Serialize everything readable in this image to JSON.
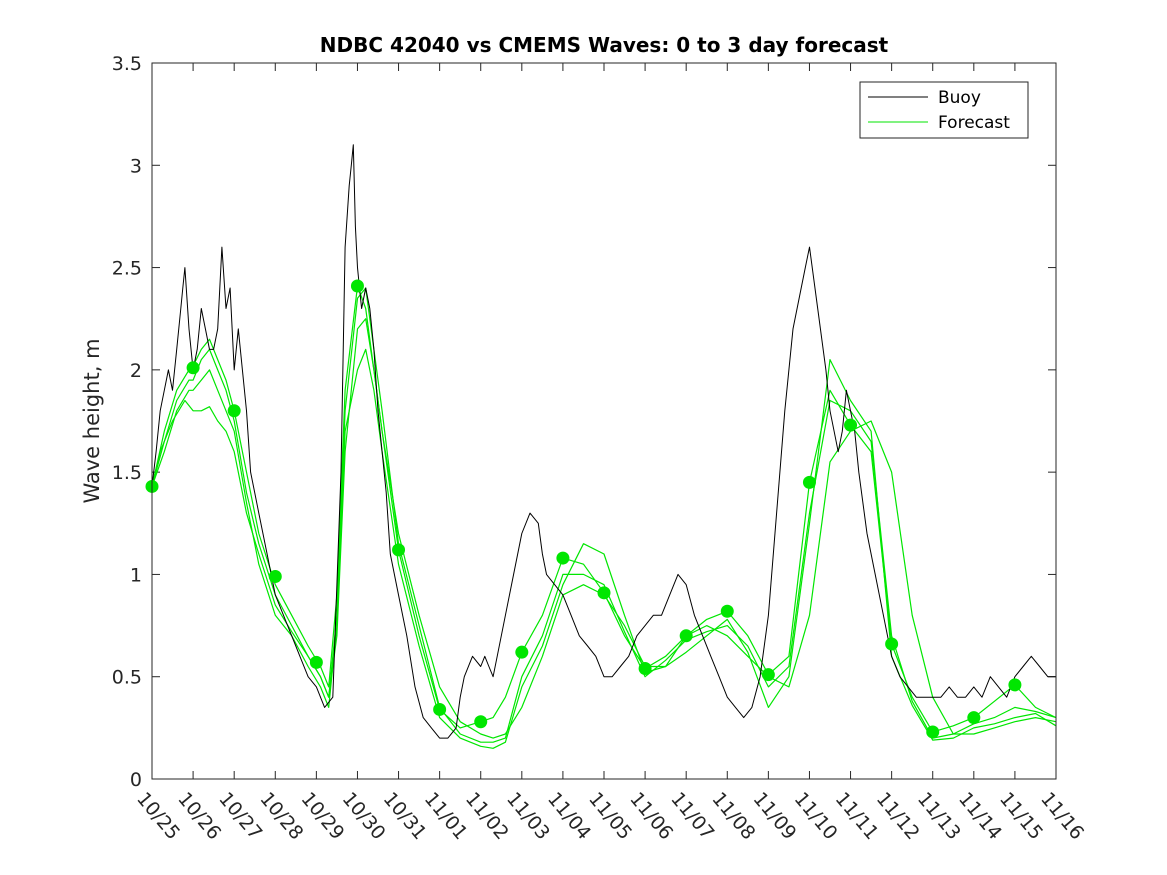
{
  "chart_data": {
    "type": "line",
    "title": "NDBC 42040 vs CMEMS Waves: 0 to 3 day forecast",
    "xlabel": "",
    "ylabel": "Wave height, m",
    "xlim": [
      0,
      22
    ],
    "ylim": [
      0,
      3.5
    ],
    "x_tick_labels": [
      "10/25",
      "10/26",
      "10/27",
      "10/28",
      "10/29",
      "10/30",
      "10/31",
      "11/01",
      "11/02",
      "11/03",
      "11/04",
      "11/05",
      "11/06",
      "11/07",
      "11/08",
      "11/09",
      "11/10",
      "11/11",
      "11/12",
      "11/13",
      "11/14",
      "11/15",
      "11/16"
    ],
    "y_ticks": [
      "0",
      "0.5",
      "1",
      "1.5",
      "2",
      "2.5",
      "3",
      "3.5"
    ],
    "legend": {
      "placement": "top-right",
      "entries": [
        "Buoy",
        "Forecast"
      ]
    },
    "colors": {
      "buoy": "#000000",
      "forecast": "#00e600"
    },
    "series": [
      {
        "name": "Buoy",
        "x": [
          0,
          0.1,
          0.2,
          0.3,
          0.4,
          0.5,
          0.6,
          0.7,
          0.75,
          0.8,
          0.9,
          1.0,
          1.1,
          1.2,
          1.3,
          1.4,
          1.5,
          1.6,
          1.7,
          1.8,
          1.9,
          2.0,
          2.1,
          2.2,
          2.3,
          2.4,
          2.6,
          2.8,
          3.0,
          3.2,
          3.4,
          3.6,
          3.8,
          4.0,
          4.2,
          4.4,
          4.6,
          4.7,
          4.8,
          4.85,
          4.9,
          4.95,
          5.0,
          5.05,
          5.1,
          5.2,
          5.3,
          5.4,
          5.5,
          5.6,
          5.7,
          5.8,
          6.0,
          6.2,
          6.4,
          6.6,
          6.8,
          7.0,
          7.2,
          7.4,
          7.5,
          7.6,
          7.8,
          8.0,
          8.1,
          8.2,
          8.3,
          8.4,
          8.5,
          8.6,
          8.8,
          9.0,
          9.2,
          9.4,
          9.5,
          9.6,
          9.8,
          10.0,
          10.2,
          10.4,
          10.6,
          10.8,
          11.0,
          11.2,
          11.4,
          11.6,
          11.8,
          12.0,
          12.2,
          12.4,
          12.6,
          12.8,
          13.0,
          13.2,
          13.4,
          13.6,
          13.8,
          14.0,
          14.2,
          14.4,
          14.6,
          14.8,
          15.0,
          15.2,
          15.4,
          15.6,
          15.8,
          15.9,
          16.0,
          16.2,
          16.4,
          16.5,
          16.6,
          16.7,
          16.8,
          16.9,
          17.0,
          17.1,
          17.2,
          17.4,
          17.6,
          17.8,
          18.0,
          18.2,
          18.4,
          18.6,
          18.8,
          19.0,
          19.2,
          19.4,
          19.6,
          19.8,
          20.0,
          20.2,
          20.4,
          20.6,
          20.8,
          21.0,
          21.2,
          21.4,
          21.6,
          21.8,
          22.0
        ],
        "y": [
          1.43,
          1.6,
          1.8,
          1.9,
          2.0,
          1.9,
          2.1,
          2.3,
          2.4,
          2.5,
          2.2,
          2.0,
          2.1,
          2.3,
          2.2,
          2.1,
          2.1,
          2.2,
          2.6,
          2.3,
          2.4,
          2.0,
          2.2,
          2.0,
          1.8,
          1.5,
          1.3,
          1.1,
          0.9,
          0.8,
          0.7,
          0.6,
          0.5,
          0.45,
          0.35,
          0.4,
          1.5,
          2.6,
          2.9,
          3.0,
          3.1,
          2.7,
          2.5,
          2.4,
          2.3,
          2.4,
          2.3,
          2.1,
          1.8,
          1.6,
          1.4,
          1.1,
          0.9,
          0.7,
          0.45,
          0.3,
          0.25,
          0.2,
          0.2,
          0.25,
          0.4,
          0.5,
          0.6,
          0.55,
          0.6,
          0.55,
          0.5,
          0.6,
          0.7,
          0.8,
          1.0,
          1.2,
          1.3,
          1.25,
          1.1,
          1.0,
          0.95,
          0.9,
          0.8,
          0.7,
          0.65,
          0.6,
          0.5,
          0.5,
          0.55,
          0.6,
          0.7,
          0.75,
          0.8,
          0.8,
          0.9,
          1.0,
          0.95,
          0.8,
          0.7,
          0.6,
          0.5,
          0.4,
          0.35,
          0.3,
          0.35,
          0.5,
          0.8,
          1.3,
          1.8,
          2.2,
          2.4,
          2.5,
          2.6,
          2.3,
          2.0,
          1.8,
          1.7,
          1.6,
          1.7,
          1.9,
          1.8,
          1.7,
          1.5,
          1.2,
          1.0,
          0.8,
          0.6,
          0.5,
          0.45,
          0.4,
          0.4,
          0.4,
          0.4,
          0.45,
          0.4,
          0.4,
          0.45,
          0.4,
          0.5,
          0.45,
          0.4,
          0.5,
          0.55,
          0.6,
          0.55,
          0.5,
          0.5
        ]
      },
      {
        "name": "Forecast",
        "x": [
          0,
          0.2,
          0.5,
          0.8,
          1.0,
          1.2,
          1.4,
          1.6,
          1.8,
          2.0,
          2.3,
          2.6,
          3.0,
          3.4,
          3.8,
          4.1,
          4.3,
          4.5,
          4.7,
          5.0,
          5.2,
          5.4,
          5.6,
          6.0,
          6.5,
          7.0,
          7.5,
          8.0,
          8.3,
          8.6,
          9.0,
          9.5,
          10.0,
          10.5,
          11.0,
          11.5,
          12.0,
          12.5,
          13.0,
          13.5,
          14.0,
          14.5,
          15.0,
          15.5,
          16.0,
          16.5,
          17.0,
          17.5,
          18.0,
          18.5,
          19.0,
          19.5,
          20.0,
          20.5,
          21.0,
          21.5,
          22.0
        ],
        "y": [
          1.43,
          1.6,
          1.75,
          1.85,
          1.8,
          1.8,
          1.82,
          1.75,
          1.7,
          1.6,
          1.3,
          1.1,
          0.85,
          0.72,
          0.6,
          0.5,
          0.4,
          0.7,
          1.6,
          2.2,
          2.25,
          2.0,
          1.7,
          1.2,
          0.8,
          0.45,
          0.28,
          0.22,
          0.2,
          0.22,
          0.35,
          0.6,
          0.9,
          0.95,
          0.9,
          0.75,
          0.55,
          0.55,
          0.7,
          0.75,
          0.7,
          0.6,
          0.5,
          0.45,
          0.8,
          1.55,
          1.7,
          1.75,
          1.5,
          0.8,
          0.4,
          0.22,
          0.22,
          0.25,
          0.28,
          0.3,
          0.28
        ]
      },
      {
        "name": "",
        "x": [
          0,
          0.3,
          0.6,
          0.9,
          1.0,
          1.2,
          1.4,
          1.6,
          1.8,
          2.0,
          2.3,
          2.6,
          3.0,
          3.4,
          3.8,
          4.1,
          4.3,
          4.5,
          4.7,
          5.0,
          5.2,
          5.4,
          5.6,
          6.0,
          6.5,
          7.0,
          7.5,
          8.0,
          8.3,
          8.6,
          9.0,
          9.5,
          10.0,
          10.5,
          11.0,
          11.5,
          12.0,
          12.5,
          13.0,
          13.5,
          14.0,
          14.5,
          15.0,
          15.5,
          16.0,
          16.5,
          17.0,
          17.5,
          18.0,
          18.5,
          19.0,
          19.5,
          20.0,
          20.5,
          21.0,
          21.5,
          22.0
        ],
        "y": [
          1.43,
          1.7,
          1.9,
          2.0,
          2.02,
          2.1,
          2.15,
          2.05,
          1.95,
          1.8,
          1.5,
          1.2,
          0.95,
          0.8,
          0.65,
          0.55,
          0.45,
          0.9,
          1.9,
          2.41,
          2.3,
          2.0,
          1.7,
          1.12,
          0.7,
          0.34,
          0.25,
          0.28,
          0.3,
          0.4,
          0.62,
          0.8,
          1.08,
          1.05,
          0.91,
          0.7,
          0.54,
          0.6,
          0.7,
          0.78,
          0.82,
          0.7,
          0.51,
          0.6,
          1.45,
          1.9,
          1.73,
          1.6,
          0.66,
          0.4,
          0.23,
          0.26,
          0.3,
          0.38,
          0.46,
          0.35,
          0.3
        ]
      },
      {
        "name": "",
        "x": [
          0,
          0.3,
          0.6,
          0.9,
          1.0,
          1.2,
          1.4,
          1.6,
          1.8,
          2.0,
          2.3,
          2.6,
          3.0,
          3.4,
          3.8,
          4.1,
          4.3,
          4.5,
          4.7,
          5.0,
          5.2,
          5.4,
          5.6,
          6.0,
          6.5,
          7.0,
          7.5,
          8.0,
          8.3,
          8.6,
          9.0,
          9.5,
          10.0,
          10.5,
          11.0,
          11.5,
          12.0,
          12.5,
          13.0,
          13.5,
          14.0,
          14.5,
          15.0,
          15.5,
          16.0,
          16.5,
          17.0,
          17.5,
          18.0,
          18.5,
          19.0,
          19.5,
          20.0,
          20.5,
          21.0,
          21.5,
          22.0
        ],
        "y": [
          1.43,
          1.65,
          1.85,
          1.95,
          1.95,
          2.05,
          2.1,
          2.0,
          1.9,
          1.75,
          1.4,
          1.15,
          0.9,
          0.75,
          0.6,
          0.5,
          0.4,
          0.8,
          1.8,
          2.35,
          2.4,
          2.1,
          1.8,
          1.15,
          0.75,
          0.35,
          0.22,
          0.18,
          0.18,
          0.2,
          0.5,
          0.7,
          1.0,
          1.0,
          0.95,
          0.72,
          0.5,
          0.58,
          0.68,
          0.72,
          0.75,
          0.65,
          0.45,
          0.55,
          1.3,
          1.85,
          1.8,
          1.65,
          0.7,
          0.38,
          0.2,
          0.22,
          0.27,
          0.3,
          0.35,
          0.33,
          0.3
        ]
      },
      {
        "name": "",
        "x": [
          0,
          0.3,
          0.6,
          0.9,
          1.0,
          1.2,
          1.4,
          1.6,
          1.8,
          2.0,
          2.3,
          2.6,
          3.0,
          3.4,
          3.8,
          4.1,
          4.3,
          4.5,
          4.7,
          5.0,
          5.2,
          5.4,
          5.6,
          6.0,
          6.5,
          7.0,
          7.5,
          8.0,
          8.3,
          8.6,
          9.0,
          9.5,
          10.0,
          10.5,
          11.0,
          11.5,
          12.0,
          12.5,
          13.0,
          13.5,
          14.0,
          14.5,
          15.0,
          15.5,
          16.0,
          16.5,
          17.0,
          17.5,
          18.0,
          18.5,
          19.0,
          19.5,
          20.0,
          20.5,
          21.0,
          21.5,
          22.0
        ],
        "y": [
          1.43,
          1.6,
          1.8,
          1.9,
          1.9,
          1.95,
          2.0,
          1.9,
          1.8,
          1.7,
          1.35,
          1.05,
          0.8,
          0.7,
          0.55,
          0.45,
          0.35,
          0.75,
          1.7,
          2.0,
          2.1,
          1.9,
          1.6,
          1.05,
          0.65,
          0.3,
          0.2,
          0.16,
          0.15,
          0.18,
          0.45,
          0.65,
          0.95,
          1.15,
          1.1,
          0.8,
          0.52,
          0.55,
          0.62,
          0.7,
          0.78,
          0.62,
          0.35,
          0.5,
          1.25,
          2.05,
          1.85,
          1.7,
          0.6,
          0.36,
          0.19,
          0.2,
          0.25,
          0.27,
          0.3,
          0.32,
          0.26
        ]
      }
    ],
    "markers": {
      "x": [
        0,
        1,
        2,
        3,
        4,
        5,
        6,
        7,
        8,
        9,
        10,
        11,
        12,
        13,
        14,
        15,
        16,
        17,
        18,
        19,
        20,
        21
      ],
      "y": [
        1.43,
        2.01,
        1.8,
        0.99,
        0.57,
        2.41,
        1.12,
        0.34,
        0.28,
        0.62,
        1.08,
        0.91,
        0.54,
        0.7,
        0.82,
        0.51,
        1.45,
        1.73,
        0.66,
        0.23,
        0.3,
        0.46
      ]
    }
  }
}
